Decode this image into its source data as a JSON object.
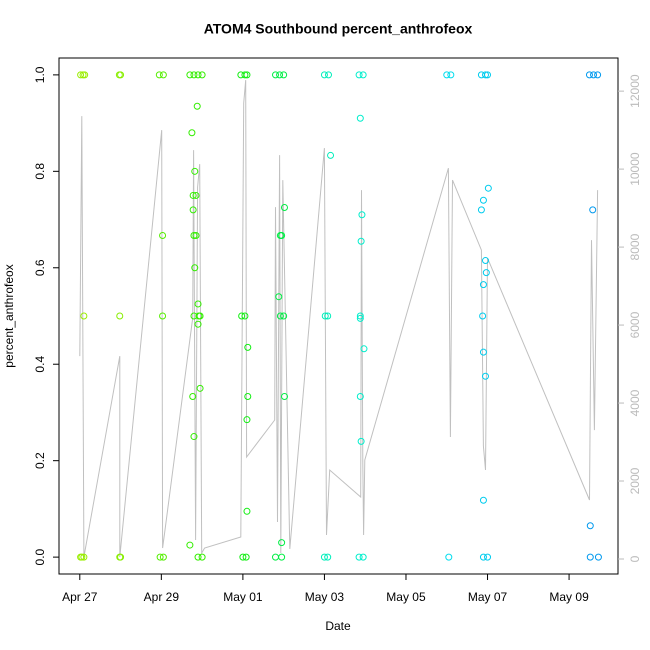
{
  "chart_data": {
    "type": "scatter",
    "title": "ATOM4 Southbound percent_anthrofeox",
    "xlabel": "Date",
    "ylabel": "percent_anthrofeox",
    "xlim": [
      -0.51,
      13.2
    ],
    "xticks": [
      {
        "value": 0,
        "label": "Apr 27"
      },
      {
        "value": 2,
        "label": "Apr 29"
      },
      {
        "value": 4,
        "label": "May 01"
      },
      {
        "value": 6,
        "label": "May 03"
      },
      {
        "value": 8,
        "label": "May 05"
      },
      {
        "value": 10,
        "label": "May 07"
      },
      {
        "value": 12,
        "label": "May 09"
      }
    ],
    "ylim": [
      -0.035,
      1.035
    ],
    "yticks": [
      {
        "value": 0,
        "label": "0.0"
      },
      {
        "value": 0.2,
        "label": "0.2"
      },
      {
        "value": 0.4,
        "label": "0.4"
      },
      {
        "value": 0.6,
        "label": "0.6"
      },
      {
        "value": 0.8,
        "label": "0.8"
      },
      {
        "value": 1,
        "label": "1.0"
      }
    ],
    "y2lim": [
      -385,
      12850
    ],
    "y2ticks": [
      0,
      2000,
      4000,
      6000,
      8000,
      10000,
      12000
    ],
    "series": [
      {
        "type": "line",
        "axis": "y2",
        "color": "#c0c0c0",
        "x": [
          0.0,
          0.05,
          0.1,
          0.98,
          0.98,
          2.01,
          2.03,
          2.08,
          2.77,
          2.79,
          2.84,
          2.89,
          2.94,
          2.99,
          3.06,
          3.95,
          4.02,
          4.07,
          4.09,
          4.78,
          4.8,
          4.85,
          4.9,
          4.93,
          4.98,
          5.15,
          6.0,
          6.05,
          6.13,
          6.89,
          6.91,
          6.94,
          6.96,
          6.99,
          9.04,
          9.09,
          9.14,
          9.85,
          9.9,
          9.95,
          10.0,
          12.5,
          12.55,
          12.62,
          12.7
        ],
        "values": [
          5205,
          11359,
          51,
          5205,
          51,
          11000,
          282,
          667,
          6179,
          10487,
          487,
          9538,
          10128,
          154,
          282,
          564,
          11692,
          12282,
          2615,
          3564,
          9025,
          949,
          10359,
          154,
          9718,
          256,
          10538,
          615,
          2282,
          1590,
          9461,
          2461,
          615,
          2538,
          10025,
          3128,
          9718,
          7923,
          2897,
          2282,
          7718,
          1513,
          8179,
          3307,
          9461
        ]
      },
      {
        "color": "#99ee00",
        "x": [
          0.02,
          0.08,
          0.12,
          0.05,
          0.02,
          0.1,
          0.1
        ],
        "values": [
          1,
          1,
          1,
          0,
          0,
          0,
          0.5
        ]
      },
      {
        "color": "#88ee00",
        "x": [
          0.97,
          1.0,
          0.98,
          1.0,
          0.98
        ],
        "values": [
          1,
          1,
          0.5,
          0,
          0
        ]
      },
      {
        "color": "#55ee00",
        "x": [
          1.95,
          2.05,
          2.03,
          2.03,
          1.97,
          2.05
        ],
        "values": [
          1,
          1,
          0.667,
          0.5,
          0,
          0
        ]
      },
      {
        "color": "#33ee00",
        "x": [
          2.7,
          2.8,
          2.9,
          3.0,
          2.88,
          2.75,
          2.82,
          2.78,
          2.85,
          2.78,
          2.85,
          2.8,
          2.95,
          2.82,
          2.9,
          2.92,
          2.8,
          2.9,
          2.77,
          2.95,
          2.8,
          2.7,
          2.9,
          3.0
        ],
        "values": [
          1,
          1,
          1,
          1,
          0.935,
          0.88,
          0.8,
          0.75,
          0.75,
          0.72,
          0.667,
          0.667,
          0.5,
          0.6,
          0.525,
          0.5,
          0.5,
          0.483,
          0.333,
          0.35,
          0.25,
          0.025,
          0,
          0
        ]
      },
      {
        "color": "#11ee11",
        "x": [
          3.95,
          4.05,
          4.1,
          3.97,
          4.05,
          4.12,
          4.12,
          4.1,
          4.1,
          4.0,
          4.08
        ],
        "values": [
          1,
          1,
          1,
          0.5,
          0.5,
          0.435,
          0.333,
          0.285,
          0.095,
          0,
          0
        ]
      },
      {
        "color": "#00ee44",
        "x": [
          4.8,
          4.9,
          5.0,
          5.02,
          4.92,
          4.95,
          4.88,
          4.92,
          5.0,
          5.02,
          4.95,
          4.8,
          4.95
        ],
        "values": [
          1,
          1,
          1,
          0.725,
          0.667,
          0.667,
          0.54,
          0.5,
          0.5,
          0.333,
          0.03,
          0,
          0
        ]
      },
      {
        "color": "#00eebb",
        "x": [
          6.0,
          6.1,
          6.15,
          6.02,
          6.08,
          6.0,
          6.08
        ],
        "values": [
          1,
          1,
          0.833,
          0.5,
          0.5,
          0,
          0
        ]
      },
      {
        "color": "#00eecc",
        "x": [
          6.85,
          6.95,
          6.88,
          6.92,
          6.9,
          6.88,
          6.88,
          6.97,
          6.88,
          6.9,
          6.85,
          6.95
        ],
        "values": [
          1,
          1,
          0.91,
          0.71,
          0.655,
          0.5,
          0.495,
          0.432,
          0.333,
          0.24,
          0,
          0
        ]
      },
      {
        "color": "#00ddee",
        "x": [
          9.0,
          9.1,
          9.05
        ],
        "values": [
          1,
          1,
          0
        ]
      },
      {
        "color": "#00ccee",
        "x": [
          9.85,
          9.95,
          10.0,
          10.02,
          9.9,
          9.85,
          9.95,
          9.97,
          9.9,
          9.88,
          9.9,
          9.95,
          9.9,
          9.9,
          10.0
        ],
        "values": [
          1,
          1,
          1,
          0.765,
          0.74,
          0.72,
          0.615,
          0.59,
          0.565,
          0.5,
          0.425,
          0.375,
          0.118,
          0,
          0
        ]
      },
      {
        "color": "#0099ee",
        "x": [
          12.5,
          12.6,
          12.7,
          12.58,
          12.52,
          12.52,
          12.72
        ],
        "values": [
          1,
          1,
          1,
          0.72,
          0.065,
          0,
          0
        ]
      }
    ]
  }
}
